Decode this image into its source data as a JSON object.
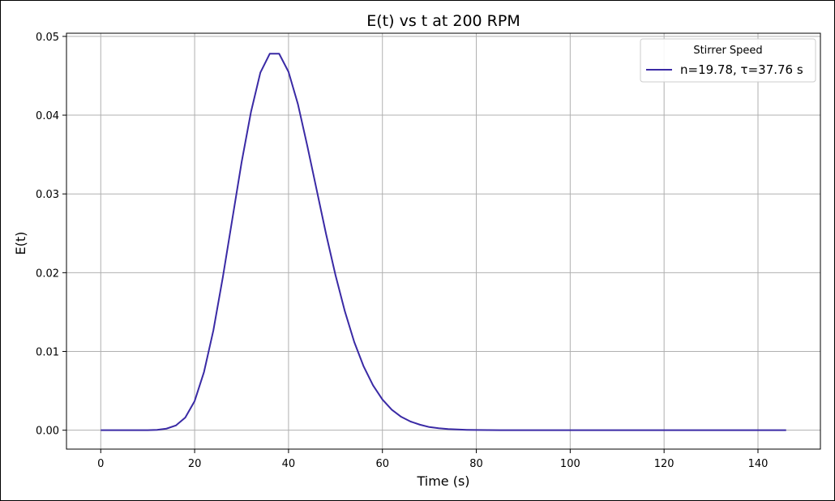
{
  "chart_data": {
    "type": "line",
    "title": "E(t) vs t at 200 RPM",
    "xlabel": "Time (s)",
    "ylabel": "E(t)",
    "xlim": [
      -7.3,
      153.3
    ],
    "ylim": [
      -0.0024,
      0.0504
    ],
    "xticks": [
      0,
      20,
      40,
      60,
      80,
      100,
      120,
      140
    ],
    "xtick_labels": [
      "0",
      "20",
      "40",
      "60",
      "80",
      "100",
      "120",
      "140"
    ],
    "yticks": [
      0.0,
      0.01,
      0.02,
      0.03,
      0.04,
      0.05
    ],
    "ytick_labels": [
      "0.00",
      "0.01",
      "0.02",
      "0.03",
      "0.04",
      "0.05"
    ],
    "grid": true,
    "legend": {
      "title": "Stirrer Speed",
      "placement": "upper right"
    },
    "series": [
      {
        "name": "n=19.78, τ=37.76 s",
        "color": "#3a2aa5",
        "x": [
          0,
          5,
          10,
          12,
          14,
          16,
          18,
          20,
          22,
          24,
          26,
          28,
          30,
          32,
          34,
          36,
          38,
          40,
          42,
          44,
          46,
          48,
          50,
          52,
          54,
          56,
          58,
          60,
          62,
          64,
          66,
          68,
          70,
          72,
          74,
          76,
          78,
          80,
          85,
          90,
          100,
          110,
          120,
          130,
          140,
          146
        ],
        "y": [
          0,
          0,
          1e-05,
          5e-05,
          0.0002,
          0.0006,
          0.0016,
          0.0037,
          0.0074,
          0.0127,
          0.0194,
          0.0267,
          0.034,
          0.0404,
          0.0454,
          0.0478,
          0.0478,
          0.0455,
          0.0414,
          0.0361,
          0.0305,
          0.0249,
          0.0197,
          0.0151,
          0.0112,
          0.0081,
          0.0057,
          0.0039,
          0.0026,
          0.0017,
          0.0011,
          0.0007,
          0.0004,
          0.00025,
          0.00015,
          9e-05,
          5e-05,
          3e-05,
          1e-05,
          0,
          0,
          0,
          0,
          0,
          0,
          0
        ]
      }
    ]
  }
}
